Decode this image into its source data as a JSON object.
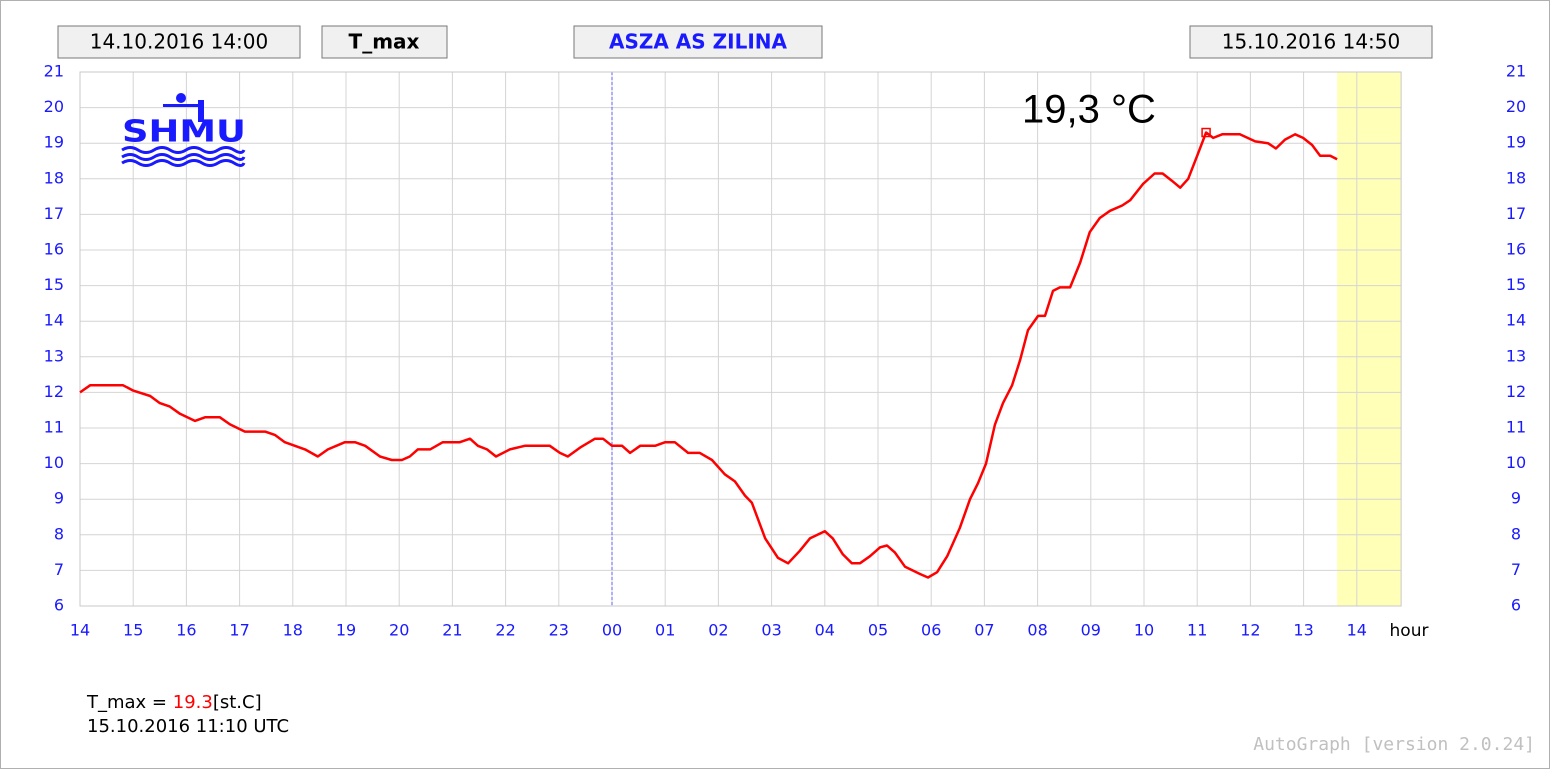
{
  "chart_data": {
    "type": "line",
    "header": {
      "start": "14.10.2016 14:00",
      "variable": "T_max",
      "station": "ASZA AS ZILINA",
      "end": "15.10.2016 14:50"
    },
    "logo": "SHMU",
    "annotation": "19,3 °C",
    "x_label": "hour",
    "footer": {
      "label": "T_max =",
      "value": "19.3",
      "unit": "[st.C]",
      "time": "15.10.2016 11:10 UTC"
    },
    "credit": "AutoGraph [version 2.0.24]",
    "xlim": [
      0,
      24.833
    ],
    "ylim": [
      6,
      21
    ],
    "xticks": [
      {
        "value": 0,
        "label": "14"
      },
      {
        "value": 1,
        "label": "15"
      },
      {
        "value": 2,
        "label": "16"
      },
      {
        "value": 3,
        "label": "17"
      },
      {
        "value": 4,
        "label": "18"
      },
      {
        "value": 5,
        "label": "19"
      },
      {
        "value": 6,
        "label": "20"
      },
      {
        "value": 7,
        "label": "21"
      },
      {
        "value": 8,
        "label": "22"
      },
      {
        "value": 9,
        "label": "23"
      },
      {
        "value": 10,
        "label": "00"
      },
      {
        "value": 11,
        "label": "01"
      },
      {
        "value": 12,
        "label": "02"
      },
      {
        "value": 13,
        "label": "03"
      },
      {
        "value": 14,
        "label": "04"
      },
      {
        "value": 15,
        "label": "05"
      },
      {
        "value": 16,
        "label": "06"
      },
      {
        "value": 17,
        "label": "07"
      },
      {
        "value": 18,
        "label": "08"
      },
      {
        "value": 19,
        "label": "09"
      },
      {
        "value": 20,
        "label": "10"
      },
      {
        "value": 21,
        "label": "11"
      },
      {
        "value": 22,
        "label": "12"
      },
      {
        "value": 23,
        "label": "13"
      },
      {
        "value": 24,
        "label": "14"
      }
    ],
    "yticks": [
      6,
      7,
      8,
      9,
      10,
      11,
      12,
      13,
      14,
      15,
      16,
      17,
      18,
      19,
      20,
      21
    ],
    "day_line": 10,
    "grid": true,
    "x": [
      0,
      0.19,
      0.81,
      1.0,
      1.32,
      1.5,
      1.69,
      1.88,
      2.16,
      2.35,
      2.63,
      2.82,
      3.1,
      3.48,
      3.67,
      3.85,
      4.23,
      4.47,
      4.66,
      4.98,
      5.17,
      5.36,
      5.64,
      5.86,
      6.05,
      6.2,
      6.35,
      6.58,
      6.82,
      7.14,
      7.33,
      7.48,
      7.65,
      7.82,
      8.08,
      8.36,
      8.83,
      9.02,
      9.17,
      9.4,
      9.68,
      9.83,
      10.0,
      10.19,
      10.34,
      10.53,
      10.81,
      11.0,
      11.18,
      11.43,
      11.65,
      11.88,
      12.12,
      12.31,
      12.5,
      12.63,
      12.88,
      13.12,
      13.31,
      13.53,
      13.72,
      14.0,
      14.15,
      14.34,
      14.51,
      14.66,
      14.85,
      15.04,
      15.17,
      15.32,
      15.51,
      15.79,
      15.94,
      16.11,
      16.3,
      16.54,
      16.73,
      16.88,
      17.03,
      17.2,
      17.35,
      17.52,
      17.67,
      17.82,
      18.01,
      18.14,
      18.29,
      18.42,
      18.61,
      18.8,
      18.98,
      19.17,
      19.36,
      19.59,
      19.74,
      19.98,
      20.2,
      20.35,
      20.52,
      20.68,
      20.83,
      21.0,
      21.167,
      21.3,
      21.47,
      21.8,
      22.09,
      22.33,
      22.48,
      22.65,
      22.84,
      22.99,
      23.16,
      23.31,
      23.5,
      23.63
    ],
    "series": [
      {
        "name": "T_max",
        "color": "#ff0000",
        "values": [
          12.0,
          12.2,
          12.2,
          12.05,
          11.9,
          11.7,
          11.6,
          11.4,
          11.2,
          11.3,
          11.3,
          11.1,
          10.9,
          10.9,
          10.8,
          10.6,
          10.4,
          10.2,
          10.4,
          10.6,
          10.6,
          10.5,
          10.2,
          10.1,
          10.1,
          10.2,
          10.4,
          10.4,
          10.6,
          10.6,
          10.7,
          10.5,
          10.4,
          10.2,
          10.4,
          10.5,
          10.5,
          10.3,
          10.2,
          10.45,
          10.7,
          10.7,
          10.5,
          10.5,
          10.3,
          10.5,
          10.5,
          10.6,
          10.6,
          10.3,
          10.3,
          10.1,
          9.7,
          9.5,
          9.1,
          8.9,
          7.9,
          7.35,
          7.2,
          7.55,
          7.9,
          8.1,
          7.9,
          7.45,
          7.2,
          7.2,
          7.4,
          7.65,
          7.7,
          7.5,
          7.1,
          6.9,
          6.8,
          6.95,
          7.4,
          8.2,
          9.0,
          9.45,
          10.0,
          11.1,
          11.7,
          12.2,
          12.9,
          13.75,
          14.15,
          14.15,
          14.85,
          14.95,
          14.95,
          15.65,
          16.5,
          16.9,
          17.1,
          17.25,
          17.4,
          17.85,
          18.15,
          18.15,
          17.95,
          17.75,
          18.0,
          18.65,
          19.3,
          19.15,
          19.25,
          19.25,
          19.05,
          19.0,
          18.85,
          19.1,
          19.25,
          19.15,
          18.95,
          18.65,
          18.65,
          18.55
        ]
      }
    ]
  }
}
